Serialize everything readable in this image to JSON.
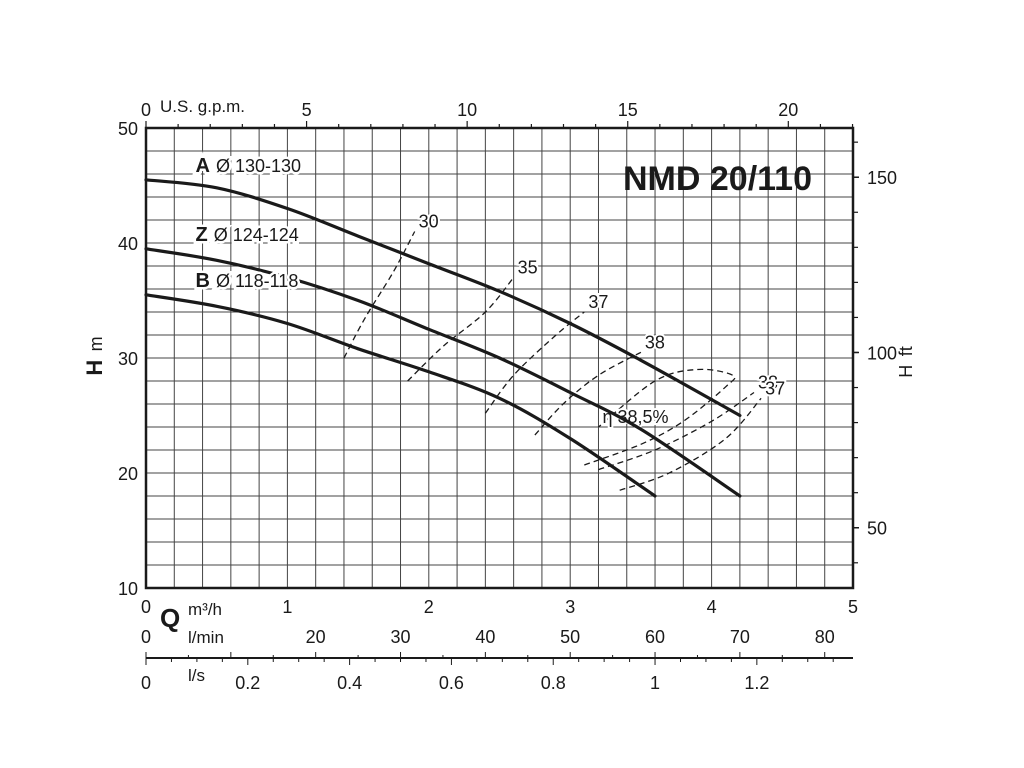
{
  "chart_data": {
    "type": "line",
    "title": "NMD 20/110",
    "y_axis": {
      "label_bold": "H",
      "label_unit": "m",
      "range": [
        10,
        50
      ],
      "ticks": [
        "10",
        "20",
        "30",
        "40",
        "50"
      ]
    },
    "y2_axis": {
      "label_bold": "H",
      "label_unit": "ft",
      "ticks": [
        {
          "value": 50,
          "label": "50"
        },
        {
          "value": 100,
          "label": "100"
        },
        {
          "value": 150,
          "label": "150"
        }
      ]
    },
    "x_axis": {
      "label_bold": "Q",
      "unit": "m³/h",
      "range": [
        0,
        5
      ],
      "ticks": [
        "0",
        "1",
        "2",
        "3",
        "4",
        "5"
      ]
    },
    "x_gpm": {
      "label": "U.S. g.p.m.",
      "ticks": [
        {
          "value": 0,
          "label": "0"
        },
        {
          "value": 5,
          "label": "5"
        },
        {
          "value": 10,
          "label": "10"
        },
        {
          "value": 15,
          "label": "15"
        },
        {
          "value": 20,
          "label": "20"
        }
      ]
    },
    "x_lmin": {
      "label": "l/min",
      "ticks": [
        {
          "value": 0,
          "label": "0"
        },
        {
          "value": 20,
          "label": "20"
        },
        {
          "value": 30,
          "label": "30"
        },
        {
          "value": 40,
          "label": "40"
        },
        {
          "value": 50,
          "label": "50"
        },
        {
          "value": 60,
          "label": "60"
        },
        {
          "value": 70,
          "label": "70"
        },
        {
          "value": 80,
          "label": "80"
        }
      ]
    },
    "x_ls": {
      "label": "l/s",
      "ticks": [
        {
          "value": 0,
          "label": "0"
        },
        {
          "value": 0.2,
          "label": "0.2"
        },
        {
          "value": 0.4,
          "label": "0.4"
        },
        {
          "value": 0.6,
          "label": "0.6"
        },
        {
          "value": 0.8,
          "label": "0.8"
        },
        {
          "value": 1,
          "label": "1"
        },
        {
          "value": 1.2,
          "label": "1.2"
        }
      ]
    },
    "grid": true,
    "series": [
      {
        "name": "A",
        "diameter": "Ø 130-130",
        "x": [
          0,
          0.5,
          1.0,
          1.5,
          2.0,
          2.5,
          3.0,
          3.5,
          4.2
        ],
        "y": [
          45.5,
          44.8,
          43.0,
          40.6,
          38.2,
          35.8,
          33.0,
          29.8,
          25.0
        ]
      },
      {
        "name": "Z",
        "diameter": "Ø 124-124",
        "x": [
          0,
          0.5,
          1.0,
          1.5,
          2.0,
          2.5,
          3.0,
          3.5,
          4.2
        ],
        "y": [
          39.5,
          38.5,
          37.0,
          35.0,
          32.5,
          30.0,
          27.0,
          23.8,
          18.0
        ]
      },
      {
        "name": "B",
        "diameter": "Ø 118-118",
        "x": [
          0,
          0.5,
          1.0,
          1.5,
          2.0,
          2.5,
          3.0,
          3.6
        ],
        "y": [
          35.5,
          34.5,
          33.0,
          30.8,
          28.8,
          26.5,
          23.0,
          18.0
        ]
      }
    ],
    "efficiency_curves": [
      {
        "label": "30",
        "x": [
          1.4,
          1.55,
          1.75,
          1.9
        ],
        "y": [
          30,
          33.5,
          37.5,
          41
        ]
      },
      {
        "label": "35",
        "x": [
          1.85,
          2.1,
          2.4,
          2.6
        ],
        "y": [
          28,
          31,
          34,
          37
        ]
      },
      {
        "label": "37",
        "x": [
          2.4,
          2.6,
          2.9,
          3.1
        ],
        "y": [
          25.2,
          28.5,
          32,
          34
        ]
      },
      {
        "label": "38",
        "x": [
          2.75,
          2.95,
          3.2,
          3.5
        ],
        "y": [
          23.3,
          26,
          28.5,
          30.5
        ]
      },
      {
        "label": "η 38,5%",
        "x": [
          3.1,
          3.5,
          3.8,
          4.1,
          4.15,
          3.9,
          3.6,
          3.2
        ],
        "y": [
          20.7,
          22.5,
          24.5,
          27.5,
          28.5,
          29,
          28,
          24
        ]
      },
      {
        "label": "38",
        "x": [
          3.2,
          3.6,
          4.0,
          4.3
        ],
        "y": [
          20.3,
          22,
          24.5,
          27
        ]
      },
      {
        "label": "37",
        "x": [
          3.35,
          3.7,
          4.1,
          4.35
        ],
        "y": [
          18.5,
          20,
          23,
          26.5
        ]
      }
    ]
  }
}
